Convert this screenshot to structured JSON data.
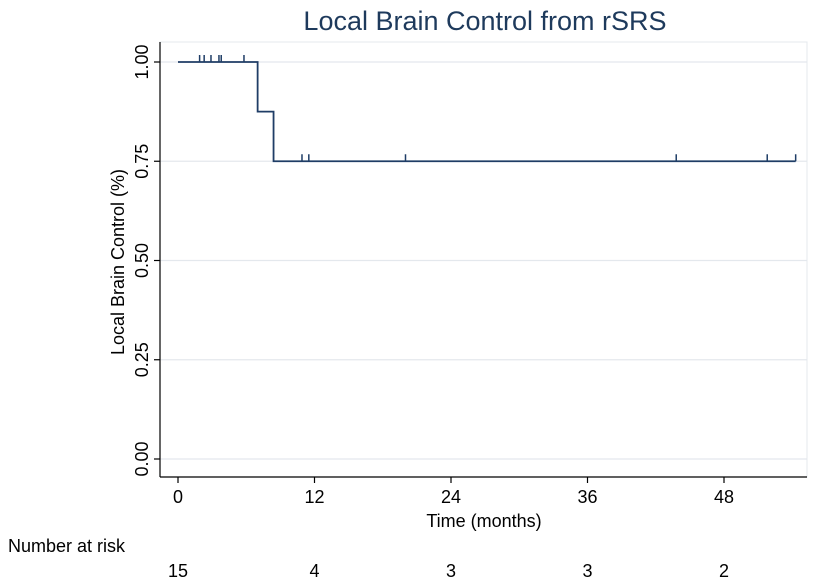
{
  "chart_data": {
    "type": "line",
    "subtype": "kaplan-meier",
    "title": "Local Brain Control from rSRS",
    "xlabel": "Time (months)",
    "ylabel": "Local Brain Control (%)",
    "xlim": [
      0,
      55
    ],
    "ylim": [
      0,
      1
    ],
    "x_ticks": [
      0,
      12,
      24,
      36,
      48
    ],
    "x_tick_labels": [
      "0",
      "12",
      "24",
      "36",
      "48"
    ],
    "y_ticks": [
      0,
      0.25,
      0.5,
      0.75,
      1.0
    ],
    "y_tick_labels": [
      "0.00",
      "0.25",
      "0.50",
      "0.75",
      "1.00"
    ],
    "grid": "horizontal",
    "legend": "none",
    "series": [
      {
        "step_points": [
          [
            0,
            1.0
          ],
          [
            7.0,
            1.0
          ],
          [
            7.0,
            0.875
          ],
          [
            8.4,
            0.875
          ],
          [
            8.4,
            0.75
          ],
          [
            54.3,
            0.75
          ]
        ],
        "censor_marks": [
          [
            1.9,
            1.0
          ],
          [
            2.3,
            1.0
          ],
          [
            2.9,
            1.0
          ],
          [
            3.6,
            1.0
          ],
          [
            3.8,
            1.0
          ],
          [
            5.8,
            1.0
          ],
          [
            10.9,
            0.75
          ],
          [
            11.5,
            0.75
          ],
          [
            20.0,
            0.75
          ],
          [
            43.8,
            0.75
          ],
          [
            51.8,
            0.75
          ],
          [
            54.3,
            0.75
          ]
        ],
        "color": "#1f3d66"
      }
    ],
    "risk_table": {
      "label": "Number at risk",
      "times": [
        0,
        12,
        24,
        36,
        48
      ],
      "counts": [
        "15",
        "4",
        "3",
        "3",
        "2"
      ]
    }
  }
}
